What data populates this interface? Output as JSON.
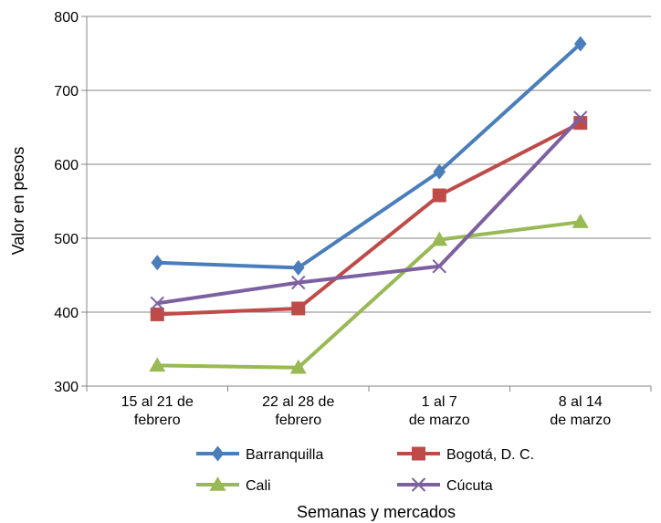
{
  "chart_data": {
    "type": "line",
    "xlabel": "Semanas y mercados",
    "ylabel": "Valor en pesos",
    "ylim": [
      300,
      800
    ],
    "yticks": [
      300,
      400,
      500,
      600,
      700,
      800
    ],
    "grid": true,
    "legend_position": "bottom",
    "categories": [
      [
        "15 al 21 de",
        "febrero"
      ],
      [
        "22 al 28 de",
        "febrero"
      ],
      [
        "1 al 7",
        "de marzo"
      ],
      [
        "8 al 14",
        "de marzo"
      ]
    ],
    "series": [
      {
        "name": "Barranquilla",
        "values": [
          467,
          460,
          590,
          763
        ],
        "color": "#4a7ebb",
        "marker": "diamond"
      },
      {
        "name": "Bogotá, D. C.",
        "values": [
          397,
          405,
          558,
          656
        ],
        "color": "#be4b48",
        "marker": "square"
      },
      {
        "name": "Cali",
        "values": [
          328,
          325,
          498,
          522
        ],
        "color": "#98b954",
        "marker": "triangle"
      },
      {
        "name": "Cúcuta",
        "values": [
          412,
          440,
          462,
          663
        ],
        "color": "#7d60a0",
        "marker": "x"
      }
    ]
  }
}
